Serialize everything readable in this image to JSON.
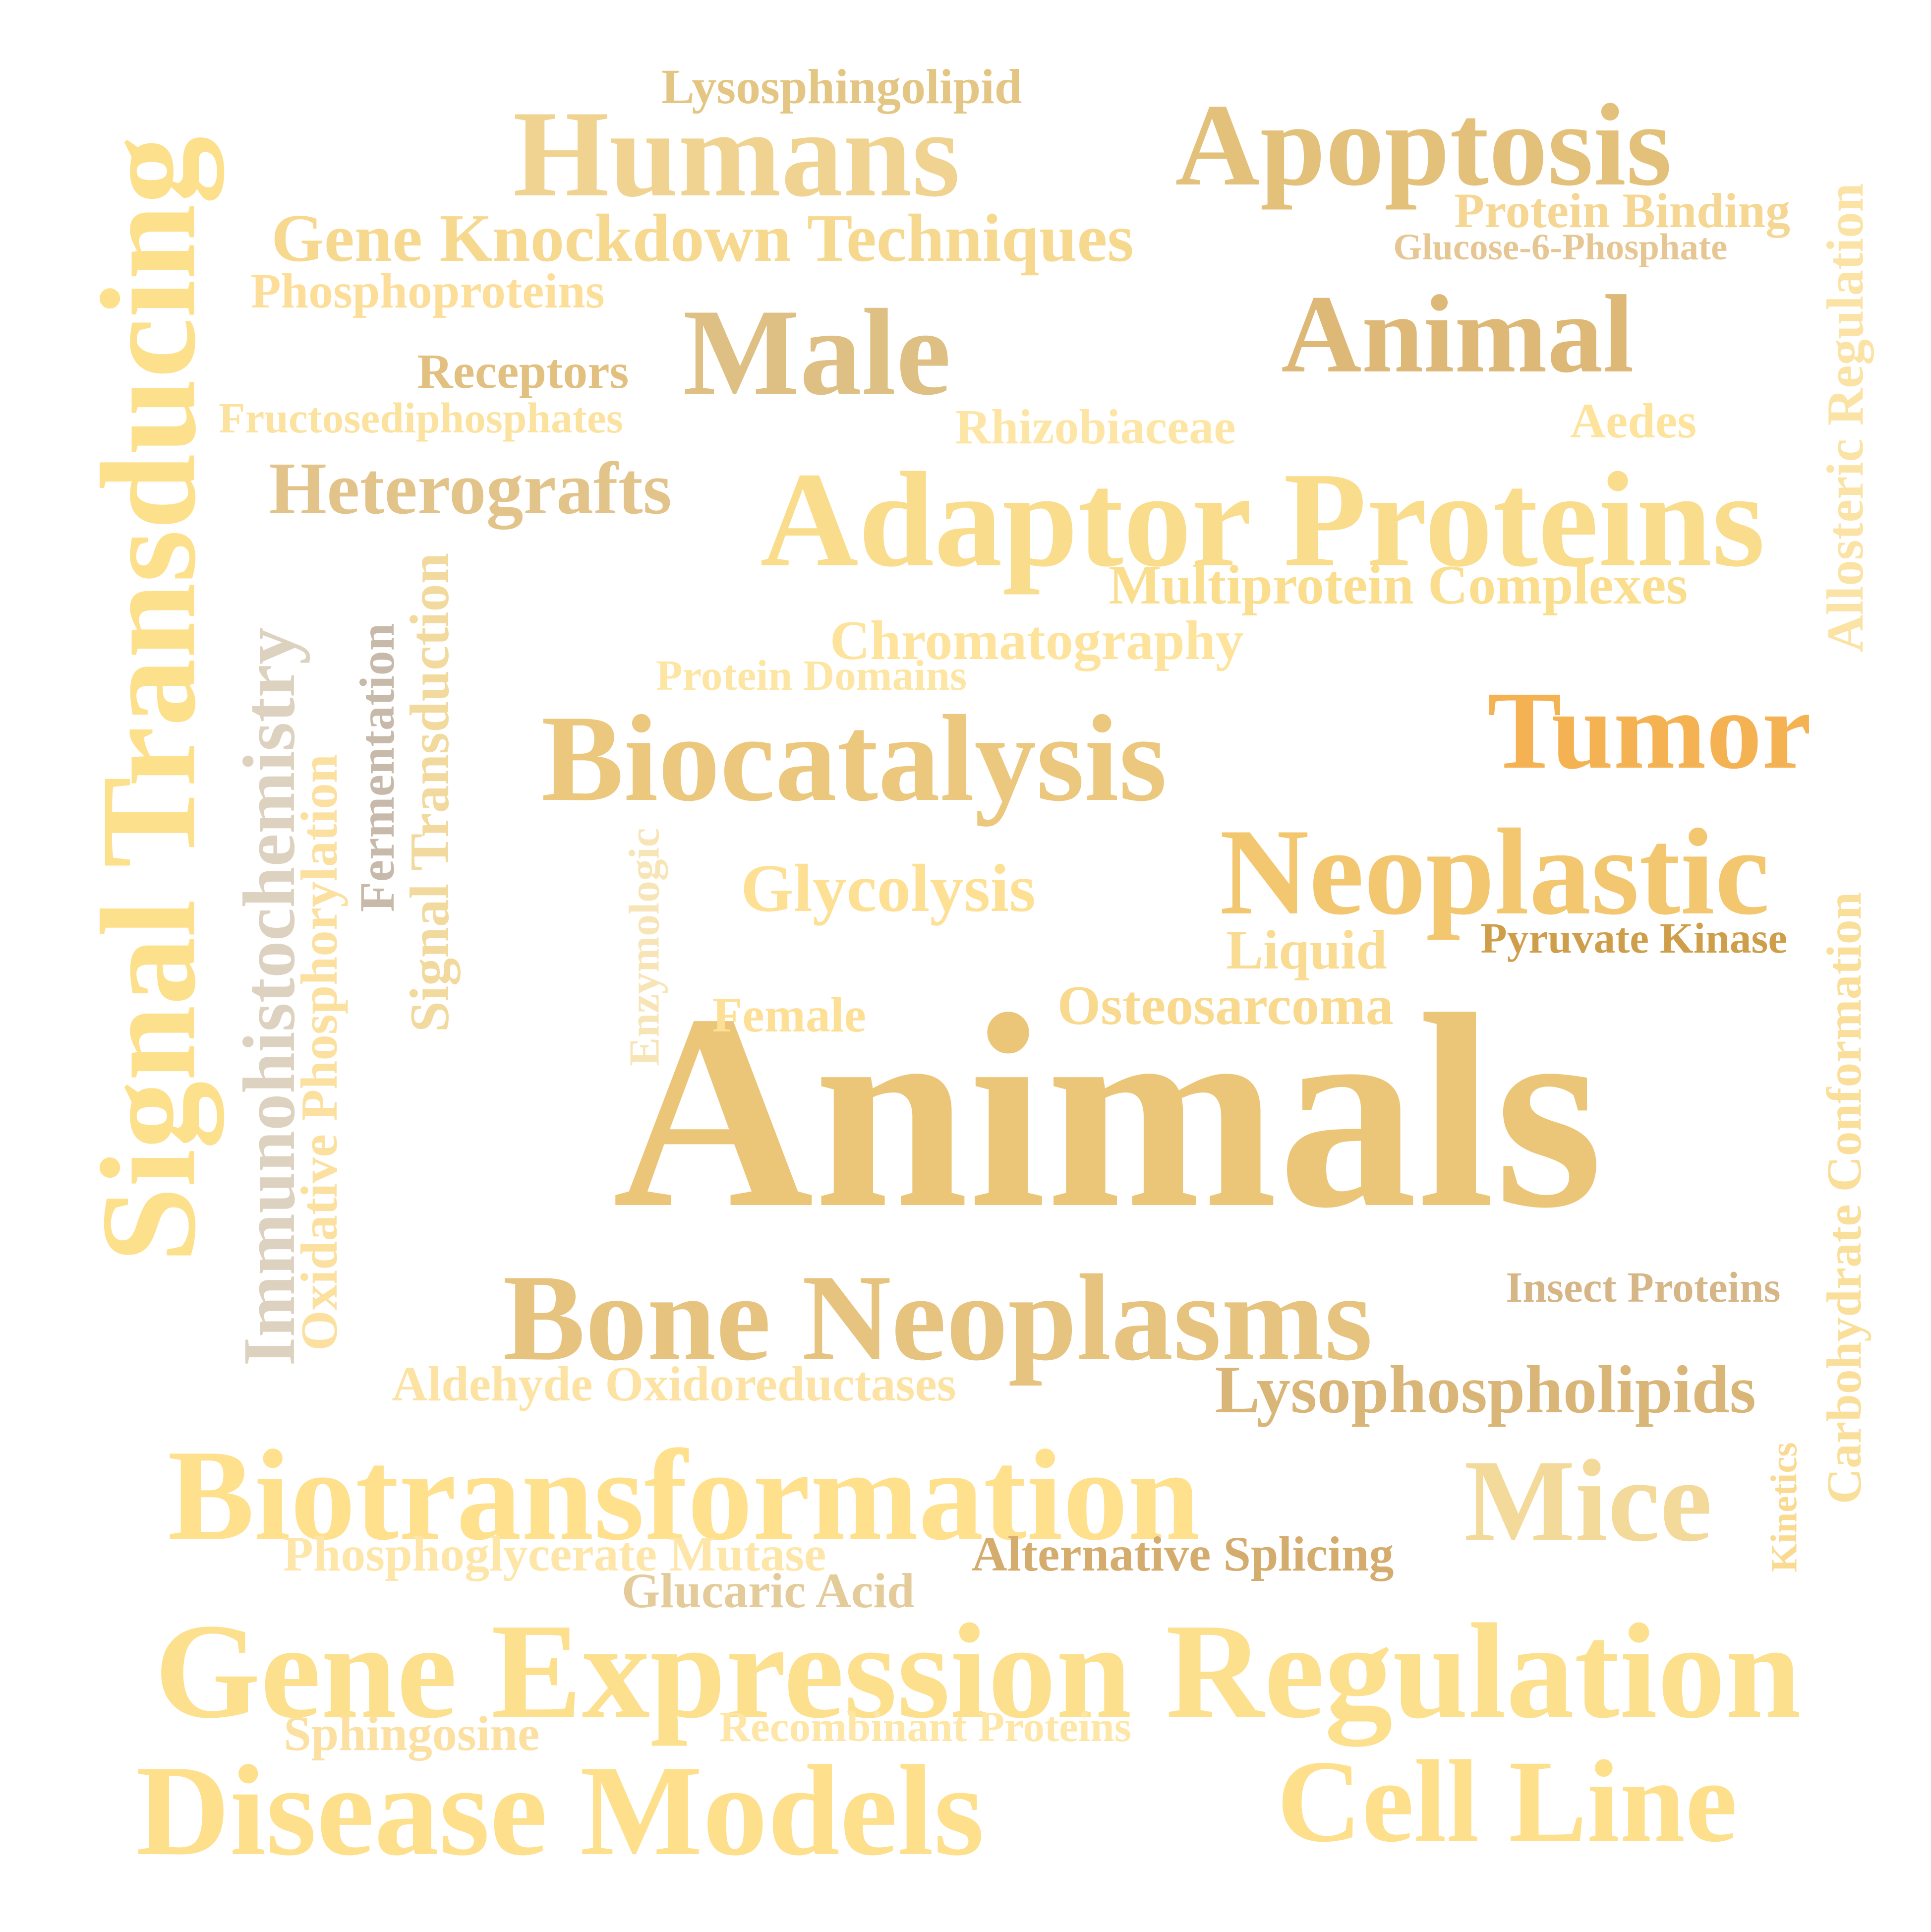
{
  "words": [
    {
      "id": "animals",
      "text": "Animals",
      "color": "#EBC678"
    },
    {
      "id": "gene-expression-regulation",
      "text": "Gene Expression Regulation",
      "color": "#FCE08D"
    },
    {
      "id": "signal-transducing",
      "text": "Signal Transducing",
      "color": "#FDE08C"
    },
    {
      "id": "adaptor-proteins",
      "text": "Adaptor Proteins",
      "color": "#F9DD8C"
    },
    {
      "id": "biotransformation",
      "text": "Biotransformation",
      "color": "#FEE08D"
    },
    {
      "id": "disease-models",
      "text": "Disease Models",
      "color": "#FDDF8C"
    },
    {
      "id": "cell-line",
      "text": "Cell Line",
      "color": "#FDDF8C"
    },
    {
      "id": "bone-neoplasms",
      "text": "Bone Neoplasms",
      "color": "#E6C47F"
    },
    {
      "id": "biocatalysis",
      "text": "Biocatalysis",
      "color": "#EBC87D"
    },
    {
      "id": "neoplastic",
      "text": "Neoplastic",
      "color": "#F3C770"
    },
    {
      "id": "humans",
      "text": "Humans",
      "color": "#F1D391"
    },
    {
      "id": "apoptosis",
      "text": "Apoptosis",
      "color": "#E3C17B"
    },
    {
      "id": "tumor",
      "text": "Tumor",
      "color": "#F5B253"
    },
    {
      "id": "animal",
      "text": "Animal",
      "color": "#DDB877"
    },
    {
      "id": "male",
      "text": "Male",
      "color": "#DEC084"
    },
    {
      "id": "mice",
      "text": "Mice",
      "color": "#F3D99A"
    },
    {
      "id": "gene-knockdown-techniques",
      "text": "Gene Knockdown Techniques",
      "color": "#F6D88E"
    },
    {
      "id": "lysophospholipids",
      "text": "Lysophospholipids",
      "color": "#D9B577"
    },
    {
      "id": "immunohistochemistry",
      "text": "Immunohistochemistry",
      "color": "#DDD2C0"
    },
    {
      "id": "signal-transduction",
      "text": "Signal Transduction",
      "color": "#F2DA9E"
    },
    {
      "id": "oxidative-phosphorylation",
      "text": "Oxidative Phosphorylation",
      "color": "#FBE0A0"
    },
    {
      "id": "heterografts",
      "text": "Heterografts",
      "color": "#E2C48B"
    },
    {
      "id": "multiprotein-complexes",
      "text": "Multiprotein Complexes",
      "color": "#FADE8E"
    },
    {
      "id": "carbohydrate-conformation",
      "text": "Carbohydrate Conformation",
      "color": "#FADF9B"
    },
    {
      "id": "allosteric-regulation",
      "text": "Allosteric Regulation",
      "color": "#FBE3A6"
    },
    {
      "id": "osteosarcoma",
      "text": "Osteosarcoma",
      "color": "#F8D98D"
    },
    {
      "id": "glycolysis",
      "text": "Glycolysis",
      "color": "#FEE094"
    },
    {
      "id": "chromatography",
      "text": "Chromatography",
      "color": "#FDE39B"
    },
    {
      "id": "lysosphingolipid",
      "text": "Lysosphingolipid",
      "color": "#E4C684"
    },
    {
      "id": "phosphoproteins",
      "text": "Phosphoproteins",
      "color": "#FCDE99"
    },
    {
      "id": "receptors",
      "text": "Receptors",
      "color": "#E2C07F"
    },
    {
      "id": "fructosediphosphates",
      "text": "Fructosediphosphates",
      "color": "#FBE29E"
    },
    {
      "id": "rhizobiaceae",
      "text": "Rhizobiaceae",
      "color": "#FDE6A5"
    },
    {
      "id": "aedes",
      "text": "Aedes",
      "color": "#FDE39B"
    },
    {
      "id": "protein-binding",
      "text": "Protein Binding",
      "color": "#F5D692"
    },
    {
      "id": "glucose-6-phosphate",
      "text": "Glucose-6-Phosphate",
      "color": "#E6C793"
    },
    {
      "id": "phosphoglycerate-mutase",
      "text": "Phosphoglycerate Mutase",
      "color": "#FDE6A8"
    },
    {
      "id": "alternative-splicing",
      "text": "Alternative Splicing",
      "color": "#D4AC6E"
    },
    {
      "id": "aldehyde-oxidoreductases",
      "text": "Aldehyde Oxidoreductases",
      "color": "#FDE3A3"
    },
    {
      "id": "glucaric-acid",
      "text": "Glucaric Acid",
      "color": "#E3CB9A"
    },
    {
      "id": "liquid",
      "text": "Liquid",
      "color": "#F9DB91"
    },
    {
      "id": "female",
      "text": "Female",
      "color": "#FDE096"
    },
    {
      "id": "protein-domains",
      "text": "Protein Domains",
      "color": "#FDE6A4"
    },
    {
      "id": "enzymologic",
      "text": "Enzymologic",
      "color": "#F8E5B7"
    },
    {
      "id": "fermentation",
      "text": "Fermentation",
      "color": "#C8BAAA"
    },
    {
      "id": "pyruvate-kinase",
      "text": "Pyruvate Kinase",
      "color": "#CF9E4A"
    },
    {
      "id": "insect-proteins",
      "text": "Insect Proteins",
      "color": "#D6B686"
    },
    {
      "id": "kinetics",
      "text": "Kinetics",
      "color": "#FADA91"
    },
    {
      "id": "sphingosine",
      "text": "Sphingosine",
      "color": "#FBE0A1"
    },
    {
      "id": "recombinant-proteins",
      "text": "Recombinant Proteins",
      "color": "#FDE6A6"
    }
  ]
}
